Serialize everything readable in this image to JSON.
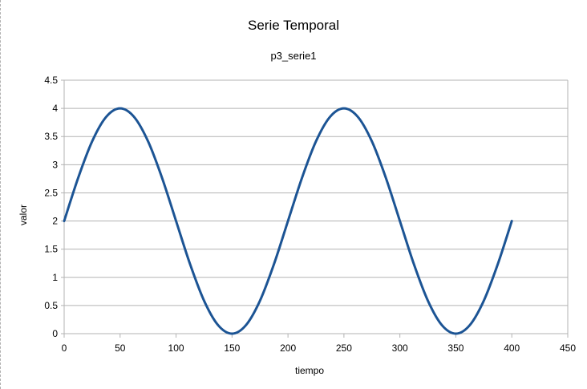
{
  "chart_data": {
    "type": "line",
    "title": "Serie Temporal",
    "subtitle": "p3_serie1",
    "xlabel": "tiempo",
    "ylabel": "valor",
    "xlim": [
      0,
      450
    ],
    "ylim": [
      0,
      4.5
    ],
    "x_ticks": [
      0,
      50,
      100,
      150,
      200,
      250,
      300,
      350,
      400,
      450
    ],
    "y_ticks": [
      0,
      0.5,
      1,
      1.5,
      2,
      2.5,
      3,
      3.5,
      4,
      4.5
    ],
    "y_tick_labels": [
      "0",
      "0.5",
      "1",
      "1.5",
      "2",
      "2.5",
      "3",
      "3.5",
      "4",
      "4.5"
    ],
    "grid": true,
    "legend": "none",
    "series": [
      {
        "color": "#1c5494",
        "x": [
          0,
          12.5,
          25,
          37.5,
          50,
          62.5,
          75,
          87.5,
          100,
          112.5,
          125,
          137.5,
          150,
          162.5,
          175,
          187.5,
          200,
          212.5,
          225,
          237.5,
          250,
          262.5,
          275,
          287.5,
          300,
          312.5,
          325,
          337.5,
          350,
          362.5,
          375,
          387.5,
          400
        ],
        "values": [
          2,
          2.765,
          3.414,
          3.848,
          4,
          3.848,
          3.414,
          2.765,
          2,
          1.235,
          0.586,
          0.152,
          0,
          0.152,
          0.586,
          1.235,
          2,
          2.765,
          3.414,
          3.848,
          4,
          3.848,
          3.414,
          2.765,
          2,
          1.235,
          0.586,
          0.152,
          0,
          0.152,
          0.586,
          1.235,
          2
        ]
      }
    ]
  }
}
